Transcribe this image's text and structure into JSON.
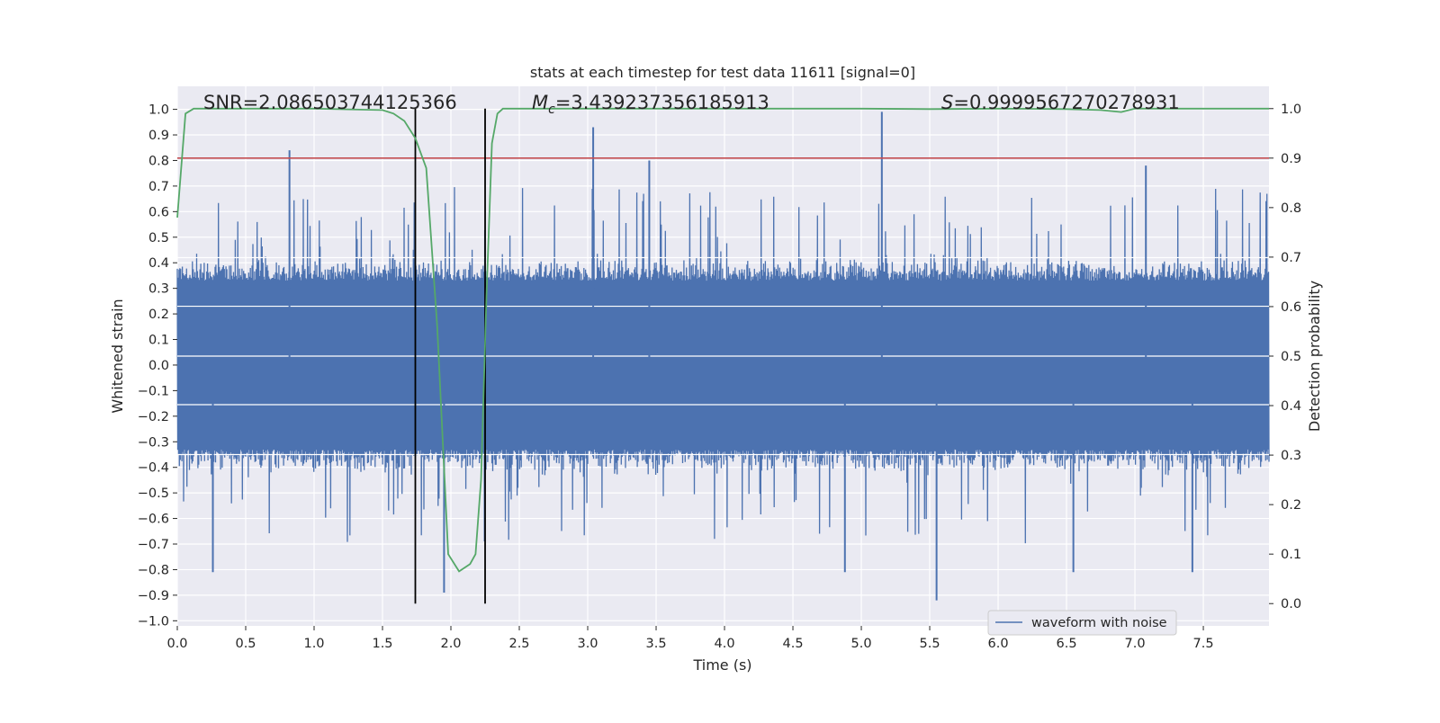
{
  "chart_data": {
    "type": "line",
    "title": "stats at each timestep for test data 11611 [signal=0]",
    "xlabel": "Time (s)",
    "ylabel_left": "Whitened strain",
    "ylabel_right": "Detection probability",
    "xlim": [
      0,
      7.98
    ],
    "ylim_left": [
      -1.02,
      1.09
    ],
    "ylim_right": [
      -0.045,
      1.045
    ],
    "x_ticks": [
      0.0,
      0.5,
      1.0,
      1.5,
      2.0,
      2.5,
      3.0,
      3.5,
      4.0,
      4.5,
      5.0,
      5.5,
      6.0,
      6.5,
      7.0,
      7.5
    ],
    "x_tick_labels": [
      "0.0",
      "0.5",
      "1.0",
      "1.5",
      "2.0",
      "2.5",
      "3.0",
      "3.5",
      "4.0",
      "4.5",
      "5.0",
      "5.5",
      "6.0",
      "6.5",
      "7.0",
      "7.5"
    ],
    "y_left_ticks": [
      -1.0,
      -0.9,
      -0.8,
      -0.7,
      -0.6,
      -0.5,
      -0.4,
      -0.3,
      -0.2,
      -0.1,
      0.0,
      0.1,
      0.2,
      0.3,
      0.4,
      0.5,
      0.6,
      0.7,
      0.8,
      0.9,
      1.0
    ],
    "y_left_tick_labels": [
      "−1.0",
      "−0.9",
      "−0.8",
      "−0.7",
      "−0.6",
      "−0.5",
      "−0.4",
      "−0.3",
      "−0.2",
      "−0.1",
      "0.0",
      "0.1",
      "0.2",
      "0.3",
      "0.4",
      "0.5",
      "0.6",
      "0.7",
      "0.8",
      "0.9",
      "1.0"
    ],
    "y_right_ticks": [
      0.0,
      0.1,
      0.2,
      0.3,
      0.4,
      0.5,
      0.6,
      0.7,
      0.8,
      0.9,
      1.0
    ],
    "y_right_tick_labels": [
      "0.0",
      "0.1",
      "0.2",
      "0.3",
      "0.4",
      "0.5",
      "0.6",
      "0.7",
      "0.8",
      "0.9",
      "1.0"
    ],
    "annotations": {
      "snr": "SNR=2.086503744125366",
      "mc_symbol": "M",
      "mc_sub": "c",
      "mc_value": "=3.439237356185913",
      "s_symbol": "S",
      "s_value": "=0.9999567270278931"
    },
    "threshold_line": {
      "axis": "right",
      "y": 0.9,
      "color": "#c44e52"
    },
    "window_lines": [
      1.74,
      2.25
    ],
    "window_range": [
      0.0,
      1.0
    ],
    "legend": {
      "label": "waveform with noise",
      "placement": "lower-right"
    },
    "series": [
      {
        "name": "waveform with noise",
        "axis": "left",
        "color": "#4c72b0",
        "style": "dense-noise",
        "spikes": [
          {
            "x": 0.82,
            "y": 0.84
          },
          {
            "x": 3.04,
            "y": 0.93
          },
          {
            "x": 5.15,
            "y": 0.99
          },
          {
            "x": 3.45,
            "y": 0.8
          },
          {
            "x": 7.08,
            "y": 0.78
          },
          {
            "x": 0.26,
            "y": -0.81
          },
          {
            "x": 1.95,
            "y": -0.89
          },
          {
            "x": 4.88,
            "y": -0.81
          },
          {
            "x": 5.55,
            "y": -0.92
          },
          {
            "x": 6.55,
            "y": -0.81
          },
          {
            "x": 7.42,
            "y": -0.81
          }
        ]
      },
      {
        "name": "detection probability",
        "axis": "right",
        "color": "#55a868",
        "x": [
          0.0,
          0.06,
          0.12,
          0.5,
          1.0,
          1.5,
          1.58,
          1.66,
          1.74,
          1.82,
          1.9,
          1.98,
          2.06,
          2.14,
          2.18,
          2.22,
          2.26,
          2.3,
          2.34,
          2.38,
          2.45,
          3.0,
          4.0,
          5.0,
          5.5,
          6.0,
          6.5,
          6.75,
          6.9,
          7.0,
          7.5,
          7.98
        ],
        "y": [
          0.78,
          0.99,
          1.0,
          1.0,
          1.0,
          0.997,
          0.99,
          0.975,
          0.94,
          0.88,
          0.56,
          0.1,
          0.065,
          0.08,
          0.1,
          0.25,
          0.62,
          0.93,
          0.99,
          1.0,
          1.0,
          1.0,
          1.0,
          1.0,
          0.999,
          1.0,
          0.999,
          0.997,
          0.993,
          1.0,
          1.0,
          1.0
        ]
      }
    ]
  },
  "colors": {
    "plot_bg": "#eaeaf2",
    "grid": "#ffffff",
    "window_line": "#000000"
  }
}
